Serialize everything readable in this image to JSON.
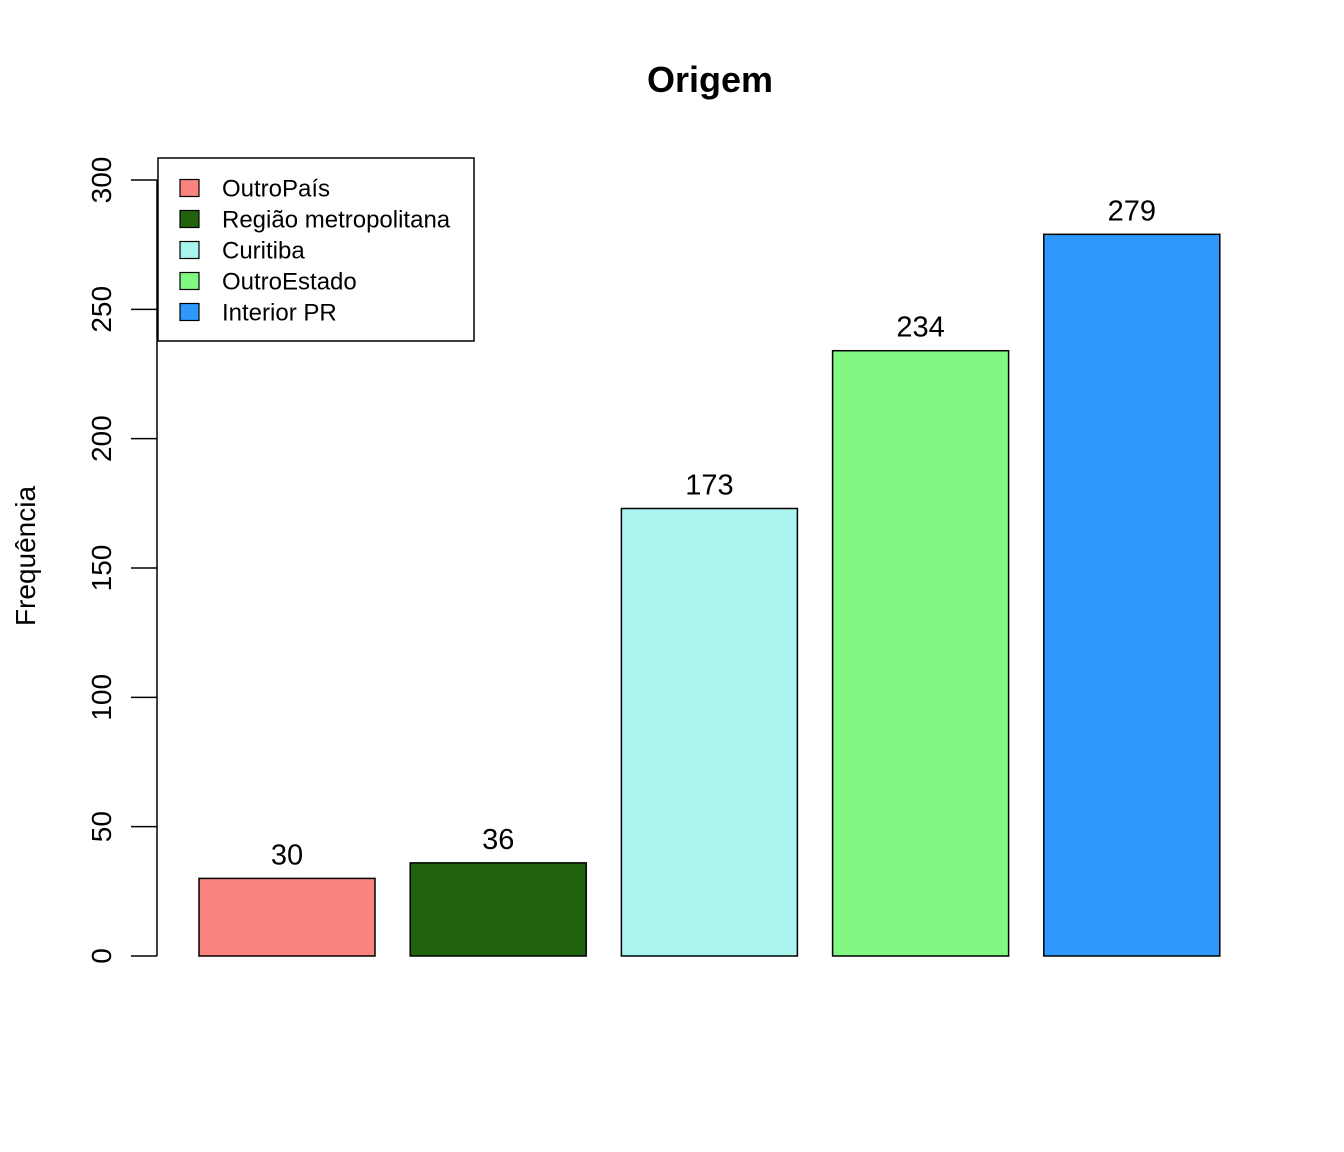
{
  "chart_data": {
    "type": "bar",
    "title": "Origem",
    "xlabel": "",
    "ylabel": "Frequência",
    "categories": [
      "OutroPaís",
      "Região metropolitana",
      "Curitiba",
      "OutroEstado",
      "Interior PR"
    ],
    "values": [
      30,
      36,
      173,
      234,
      279
    ],
    "colors": [
      "#F8837F",
      "#22610D",
      "#A9F4EF",
      "#80F882",
      "#2F98FD"
    ],
    "ylim": [
      0,
      300
    ],
    "yticks": [
      0,
      50,
      100,
      150,
      200,
      250,
      300
    ],
    "grid": false,
    "legend": {
      "position": "top-left",
      "entries": [
        "OutroPaís",
        "Região metropolitana",
        "Curitiba",
        "OutroEstado",
        "Interior PR"
      ]
    },
    "data_labels": true
  }
}
